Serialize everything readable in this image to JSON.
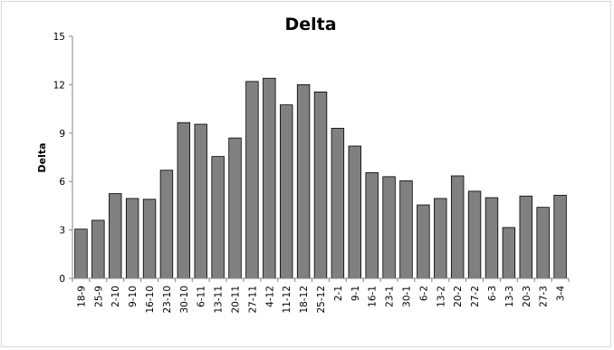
{
  "chart_data": {
    "type": "bar",
    "title": "Delta",
    "xlabel": "",
    "ylabel": "Delta",
    "ylim": [
      0,
      15
    ],
    "yticks": [
      0,
      3,
      6,
      9,
      12,
      15
    ],
    "grid": false,
    "legend": "none",
    "categories": [
      "18-9",
      "25-9",
      "2-10",
      "9-10",
      "16-10",
      "23-10",
      "30-10",
      "6-11",
      "13-11",
      "20-11",
      "27-11",
      "4-12",
      "11-12",
      "18-12",
      "25-12",
      "2-1",
      "9-1",
      "16-1",
      "23-1",
      "30-1",
      "6-2",
      "13-2",
      "20-2",
      "27-2",
      "6-3",
      "13-3",
      "20-3",
      "27-3",
      "3-4"
    ],
    "values": [
      3.05,
      3.6,
      5.25,
      4.95,
      4.9,
      6.7,
      9.65,
      9.55,
      7.55,
      8.7,
      12.2,
      12.4,
      10.75,
      12.0,
      11.55,
      9.3,
      8.2,
      6.55,
      6.3,
      6.05,
      4.55,
      4.95,
      6.35,
      5.4,
      5.0,
      3.15,
      5.1,
      4.4,
      5.15
    ],
    "colors": {
      "bar_fill": "#808080",
      "bar_stroke": "#000000",
      "axis": "#868686"
    }
  }
}
